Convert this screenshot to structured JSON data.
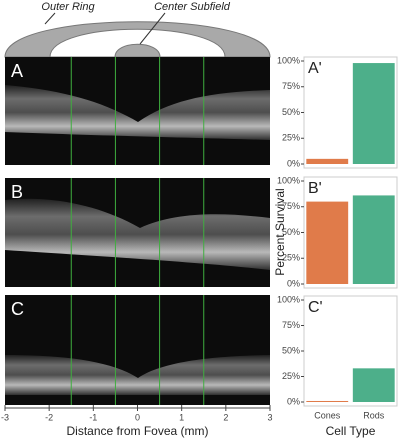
{
  "chart_data": [
    {
      "type": "image",
      "labels": [
        "Outer Ring",
        "Center Subfield"
      ],
      "panels": [
        "A",
        "B",
        "C"
      ],
      "xlabel": "Distance from Fovea (mm)",
      "xlim": [
        -3,
        3
      ],
      "xticks": [
        -3,
        -2,
        -1,
        0,
        1,
        2,
        3
      ],
      "lines": [
        -1.5,
        -0.5,
        0.5,
        1.5
      ],
      "line_color": "#3fae3f"
    },
    {
      "type": "bar",
      "panel": "A'",
      "categories": [
        null,
        null
      ],
      "values": [
        5,
        98
      ],
      "colors": [
        "#e07b4a",
        "#4daf8a"
      ],
      "ylim": [
        0,
        100
      ],
      "yticks": [
        {
          "value": 0,
          "label": "0%"
        },
        {
          "value": 25,
          "label": "25%"
        },
        {
          "value": 50,
          "label": "50%"
        },
        {
          "value": 75,
          "label": "75%"
        },
        {
          "value": 100,
          "label": "100%"
        }
      ]
    },
    {
      "type": "bar",
      "panel": "B'",
      "ylabel": "Percent Survival",
      "categories": [
        null,
        null
      ],
      "values": [
        80,
        86
      ],
      "colors": [
        "#e07b4a",
        "#4daf8a"
      ],
      "ylim": [
        0,
        100
      ],
      "yticks": [
        {
          "value": 0,
          "label": "0%"
        },
        {
          "value": 25,
          "label": "25%"
        },
        {
          "value": 50,
          "label": "50%"
        },
        {
          "value": 75,
          "label": "75%"
        },
        {
          "value": 100,
          "label": "100%"
        }
      ]
    },
    {
      "type": "bar",
      "panel": "C'",
      "xlabel": "Cell Type",
      "categories": [
        "Cones",
        "Rods"
      ],
      "values": [
        1,
        33
      ],
      "colors": [
        "#e07b4a",
        "#4daf8a"
      ],
      "ylim": [
        0,
        100
      ],
      "yticks": [
        {
          "value": 0,
          "label": "0%"
        },
        {
          "value": 25,
          "label": "25%"
        },
        {
          "value": 50,
          "label": "50%"
        },
        {
          "value": 75,
          "label": "75%"
        },
        {
          "value": 100,
          "label": "100%"
        }
      ]
    }
  ]
}
